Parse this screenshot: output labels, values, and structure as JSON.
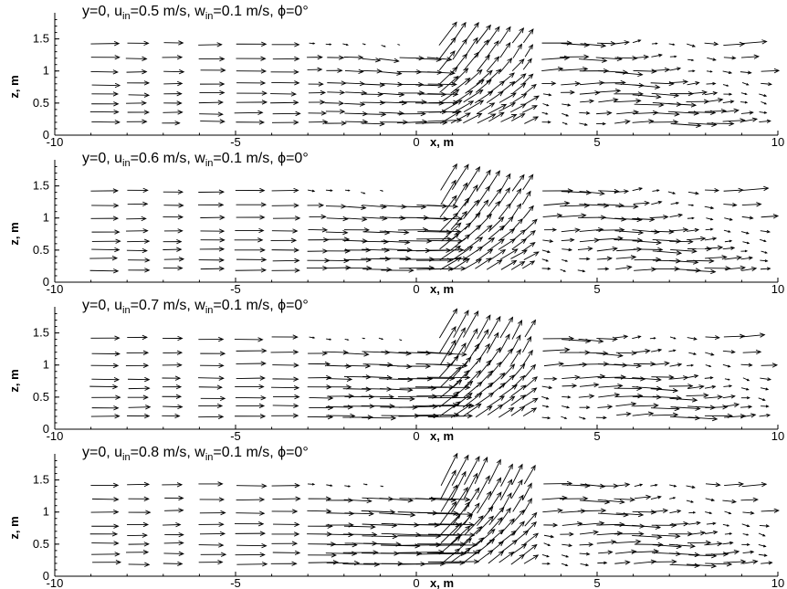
{
  "chart_data": [
    {
      "type": "vector-field",
      "title": {
        "prefix": "y=0, u",
        "sub1": "in",
        "mid1": "=0.5 m/s, w",
        "sub2": "in",
        "mid2": "=0.1 m/s, ",
        "phi": "ϕ",
        "suffix": "=0°"
      },
      "u_in": 0.5,
      "xlabel": "x, m",
      "ylabel": "z, m",
      "xlim": [
        -10,
        10
      ],
      "ylim": [
        0,
        1.85
      ],
      "xticks": [
        "-10",
        "-5",
        "0",
        "5",
        "10"
      ],
      "yticks": [
        "0",
        "0.5",
        "1",
        "1.5"
      ],
      "recirculation_top": 1.45
    },
    {
      "type": "vector-field",
      "title": {
        "prefix": "y=0, u",
        "sub1": "in",
        "mid1": "=0.6 m/s, w",
        "sub2": "in",
        "mid2": "=0.1 m/s, ",
        "phi": "ϕ",
        "suffix": "=0°"
      },
      "u_in": 0.6,
      "xlabel": "x, m",
      "ylabel": "z, m",
      "xlim": [
        -10,
        10
      ],
      "ylim": [
        0,
        1.85
      ],
      "xticks": [
        "-10",
        "-5",
        "0",
        "5",
        "10"
      ],
      "yticks": [
        "0",
        "0.5",
        "1",
        "1.5"
      ],
      "recirculation_top": 1.4
    },
    {
      "type": "vector-field",
      "title": {
        "prefix": "y=0, u",
        "sub1": "in",
        "mid1": "=0.7 m/s, w",
        "sub2": "in",
        "mid2": "=0.1 m/s, ",
        "phi": "ϕ",
        "suffix": "=0°"
      },
      "u_in": 0.7,
      "xlabel": "x, m",
      "ylabel": "z, m",
      "xlim": [
        -10,
        10
      ],
      "ylim": [
        0,
        1.85
      ],
      "xticks": [
        "-10",
        "-5",
        "0",
        "5",
        "10"
      ],
      "yticks": [
        "0",
        "0.5",
        "1",
        "1.5"
      ],
      "recirculation_top": 1.4
    },
    {
      "type": "vector-field",
      "title": {
        "prefix": "y=0, u",
        "sub1": "in",
        "mid1": "=0.8 m/s, w",
        "sub2": "in",
        "mid2": "=0.1 m/s, ",
        "phi": "ϕ",
        "suffix": "=0°"
      },
      "u_in": 0.8,
      "xlabel": "x, m",
      "ylabel": "z, m",
      "xlim": [
        -10,
        10
      ],
      "ylim": [
        0,
        1.85
      ],
      "xticks": [
        "-10",
        "-5",
        "0",
        "5",
        "10"
      ],
      "yticks": [
        "0",
        "0.5",
        "1",
        "1.5"
      ],
      "recirculation_top": 1.4
    }
  ],
  "colors": {
    "axis": "#000000",
    "vector": "#000000",
    "background": "#ffffff"
  }
}
